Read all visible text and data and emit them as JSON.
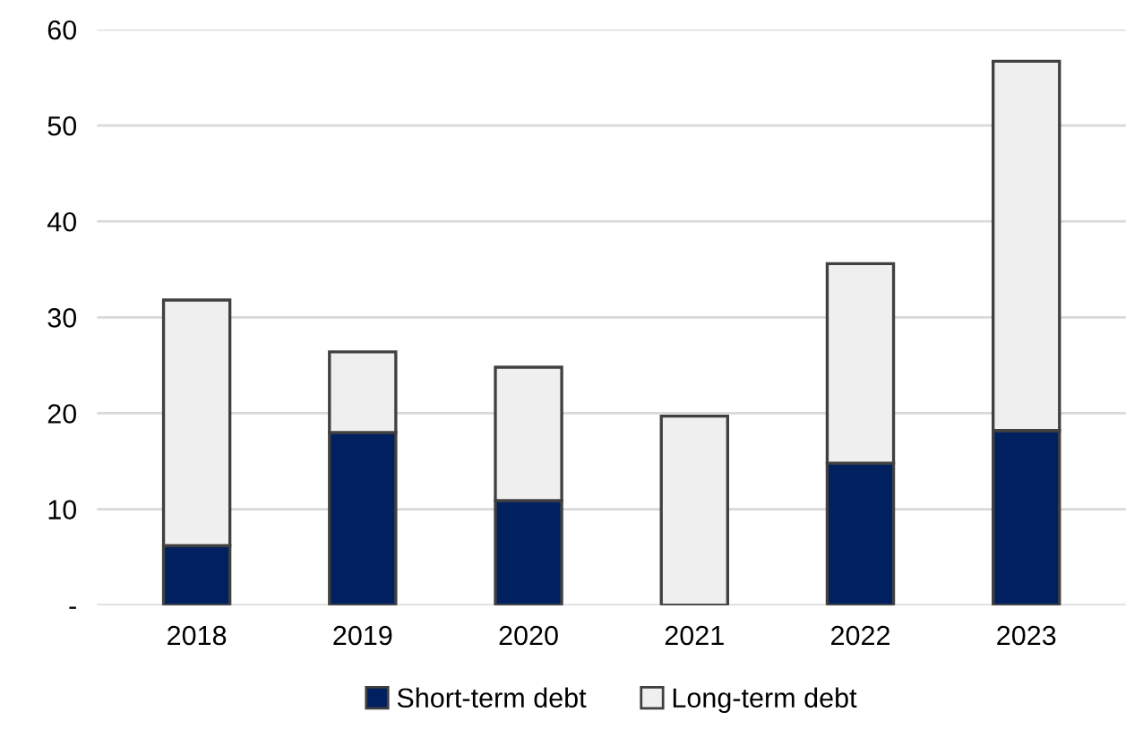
{
  "chart_data": {
    "type": "bar",
    "stacked": true,
    "categories": [
      "2018",
      "2019",
      "2020",
      "2021",
      "2022",
      "2023"
    ],
    "series": [
      {
        "name": "Short-term debt",
        "color": "#002060",
        "values": [
          6.2,
          18.0,
          10.9,
          0,
          14.8,
          18.2
        ]
      },
      {
        "name": "Long-term debt",
        "color": "#efefef",
        "values": [
          25.6,
          8.4,
          13.9,
          19.7,
          20.8,
          38.5
        ]
      }
    ],
    "ylim": [
      0,
      60
    ],
    "yticks": [
      {
        "value": 0,
        "label": "-"
      },
      10,
      20,
      30,
      40,
      50,
      60
    ],
    "grid": "y",
    "legend": "bottom"
  }
}
